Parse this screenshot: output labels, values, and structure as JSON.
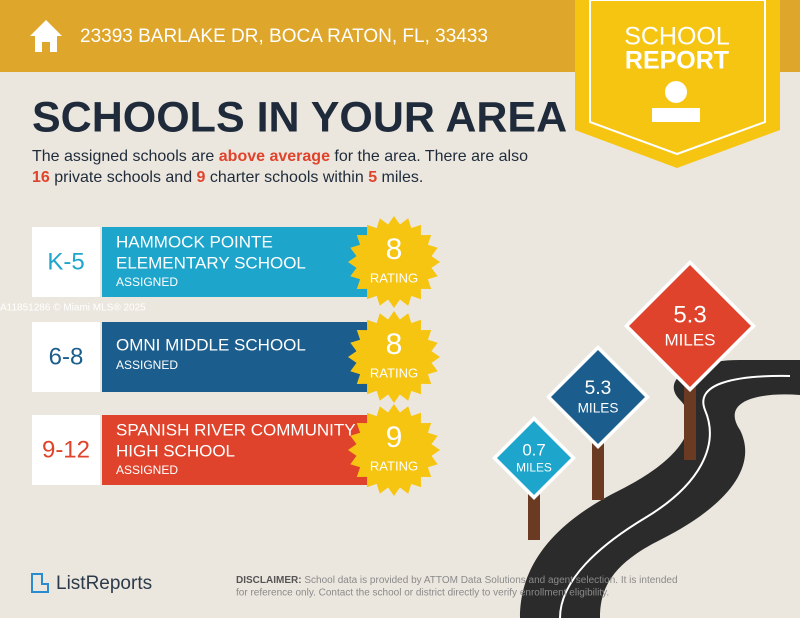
{
  "header": {
    "address": "23393 BARLAKE DR, BOCA RATON, FL, 33433"
  },
  "badge": {
    "line1": "SCHOOL",
    "line2": "REPORT"
  },
  "title": "SCHOOLS IN YOUR AREA",
  "intro": {
    "p1": "The assigned schools are ",
    "highlight": "above average",
    "p2": " for the area. There are also ",
    "private_count": 16,
    "p3": " private schools and ",
    "charter_count": 9,
    "p4": " charter schools within ",
    "radius": 5,
    "p5": " miles."
  },
  "schools": [
    {
      "grades": "K-5",
      "name_line1": "HAMMOCK POINTE",
      "name_line2": "ELEMENTARY SCHOOL",
      "status": "ASSIGNED",
      "rating": 8,
      "rating_label": "RATING"
    },
    {
      "grades": "6-8",
      "name_line1": "OMNI MIDDLE SCHOOL",
      "status": "ASSIGNED",
      "rating": 8,
      "rating_label": "RATING"
    },
    {
      "grades": "9-12",
      "name_line1": "SPANISH RIVER COMMUNITY",
      "name_line2": "HIGH SCHOOL",
      "status": "ASSIGNED",
      "rating": 9,
      "rating_label": "RATING"
    }
  ],
  "signs": [
    {
      "distance": 0.7,
      "unit": "MILES"
    },
    {
      "distance": 5.3,
      "unit": "MILES"
    },
    {
      "distance": 5.3,
      "unit": "MILES"
    }
  ],
  "watermark": "A11851286 © Miami MLS® 2025",
  "logo": "ListReports",
  "disclaimer": {
    "label": "DISCLAIMER:",
    "line1": " School data is provided by ATTOM Data Solutions and agent selection. It is intended",
    "line2": "for reference only. Contact the school or district directly to verify enrollment eligibility."
  }
}
